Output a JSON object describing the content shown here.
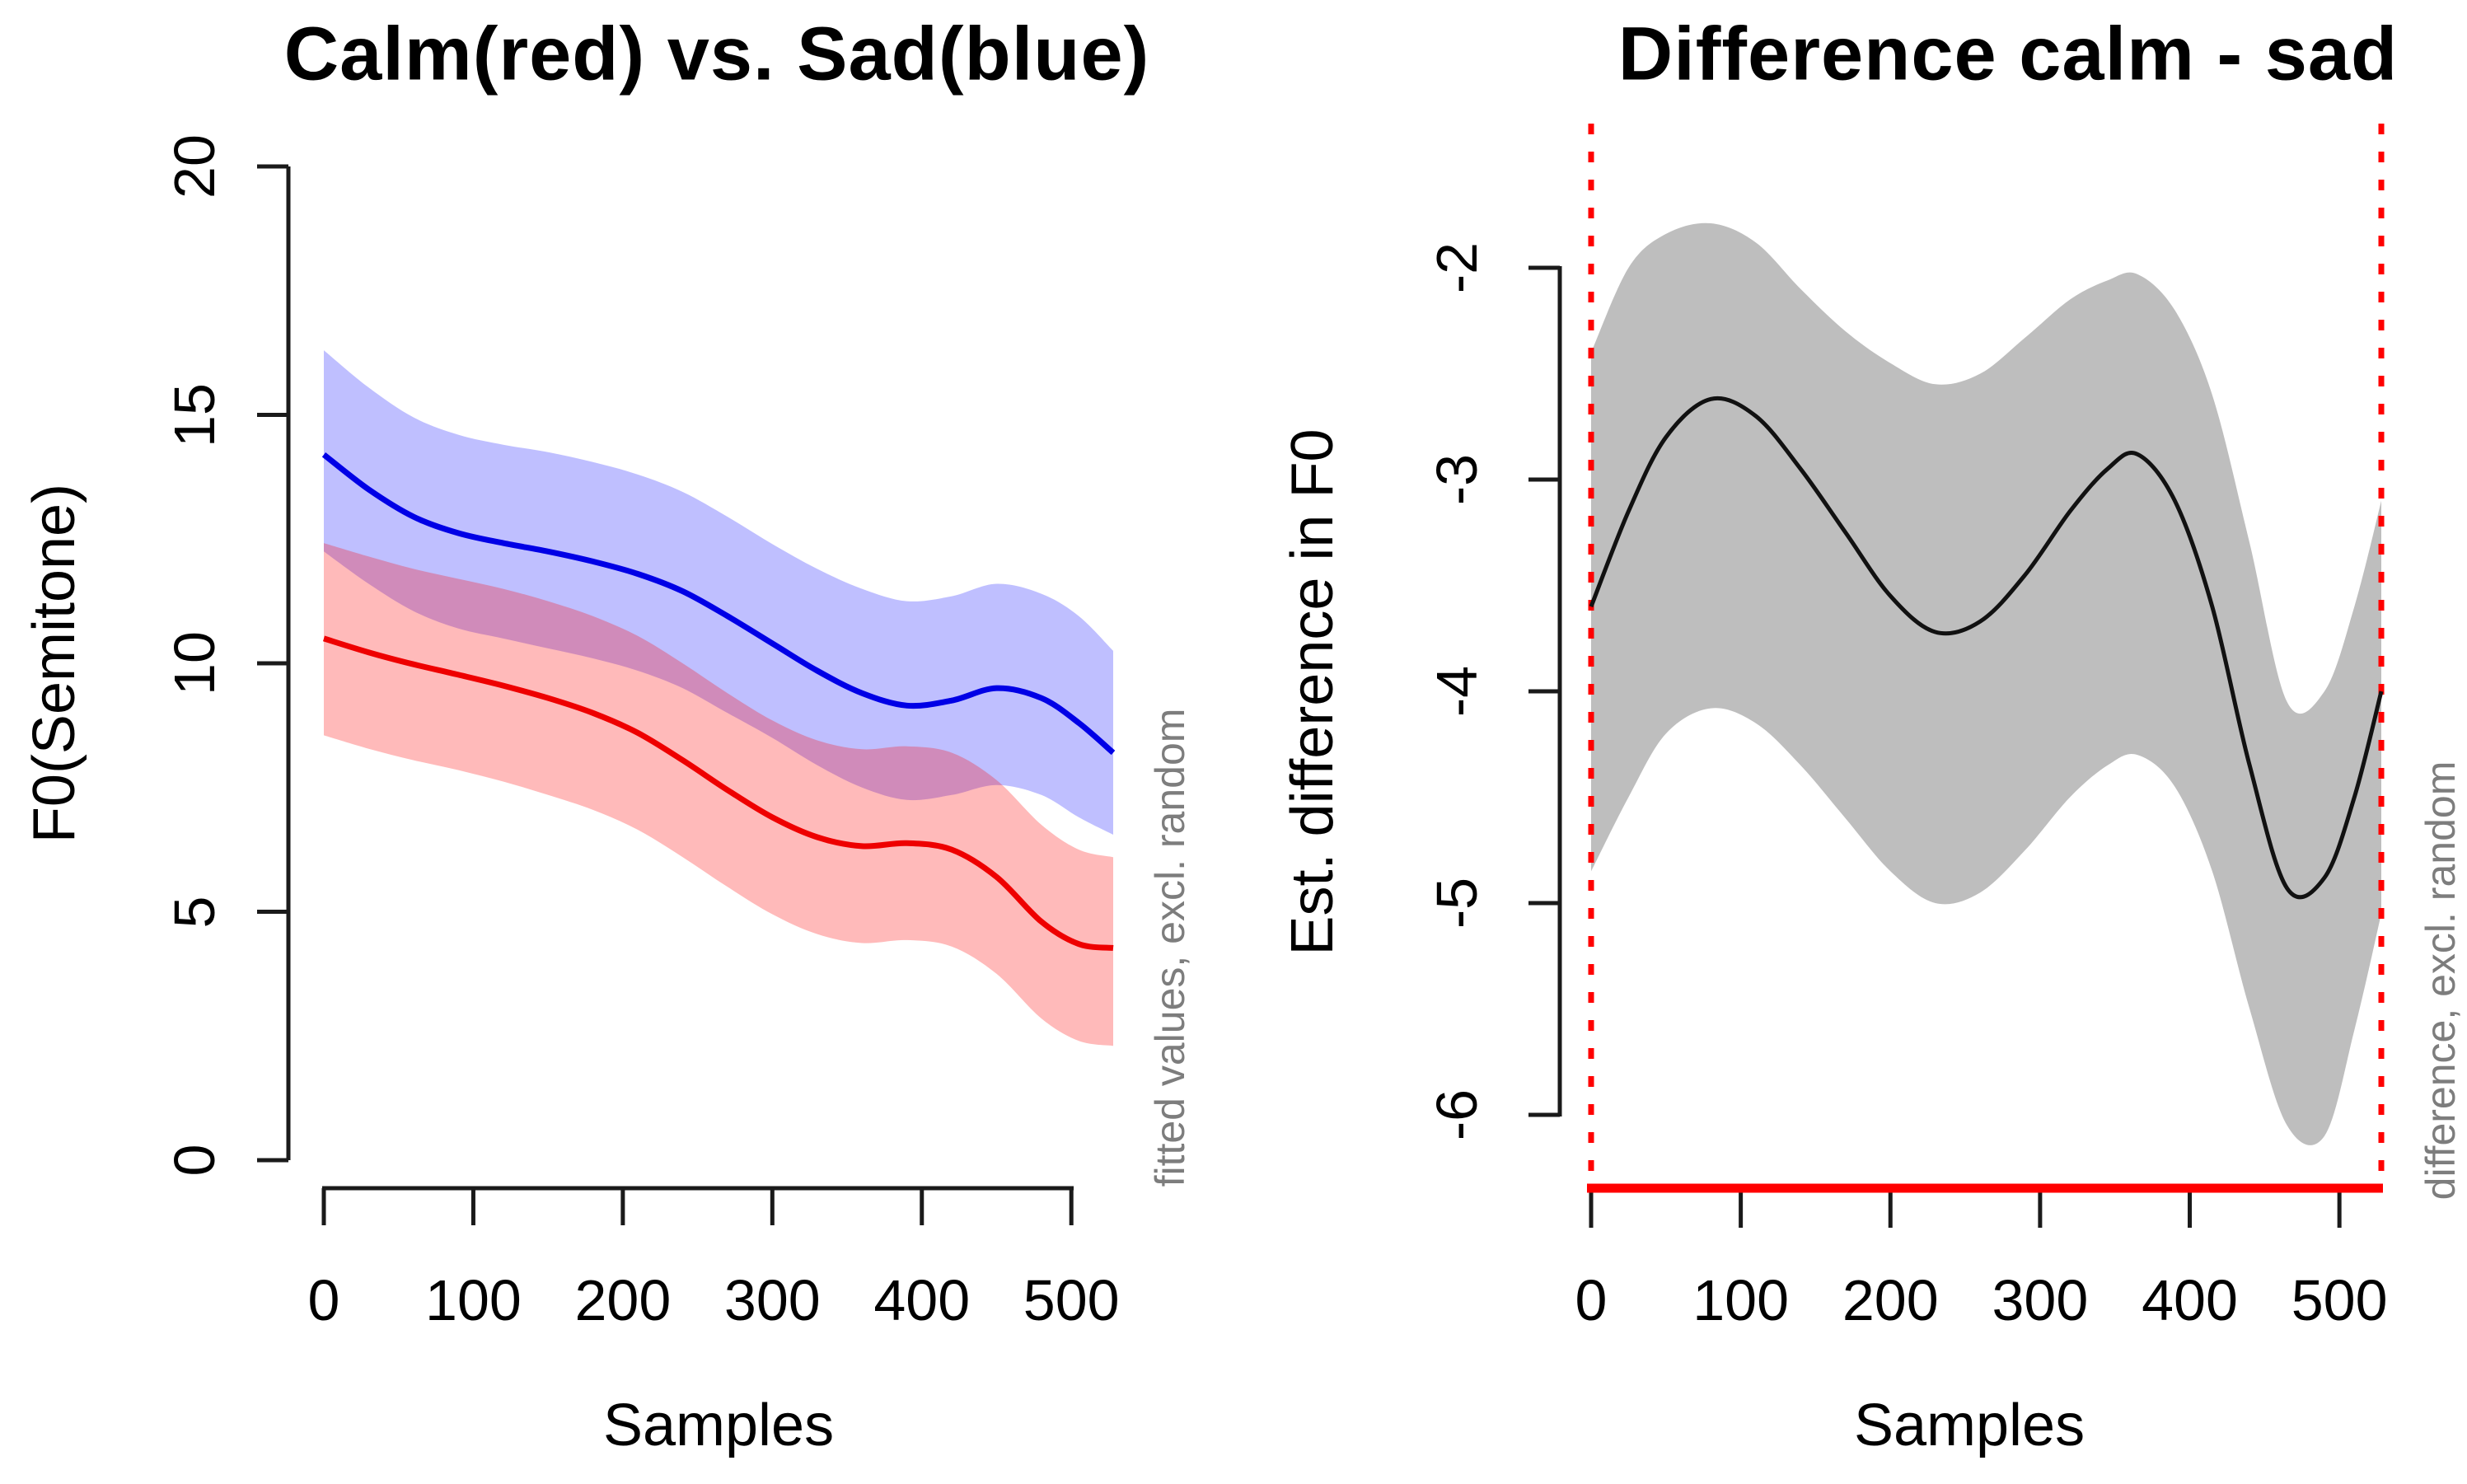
{
  "figure": {
    "background": "#ffffff",
    "text_color": "#000000",
    "annotation_color": "#7d7d7d"
  },
  "chart_data": [
    {
      "type": "line",
      "title": "Calm(red) vs. Sad(blue)",
      "xlabel": "Samples",
      "ylabel": "F0(Semitone)",
      "side_annotation": "fitted values, excl. random",
      "legend_note": "red = calm, blue = sad; shaded ribbons are confidence bands",
      "x_ticks": [
        0,
        100,
        200,
        300,
        400,
        500
      ],
      "y_ticks": [
        0,
        5,
        10,
        15,
        20
      ],
      "xlim": [
        0,
        528
      ],
      "ylim": [
        0,
        20
      ],
      "grid": false,
      "x": [
        0,
        30,
        60,
        90,
        120,
        150,
        180,
        210,
        240,
        270,
        300,
        330,
        360,
        390,
        420,
        450,
        480,
        505,
        528
      ],
      "series": [
        {
          "name": "sad-fitted",
          "color": "#0000e6",
          "values": [
            14.2,
            13.5,
            12.95,
            12.62,
            12.42,
            12.25,
            12.05,
            11.8,
            11.45,
            10.95,
            10.4,
            9.85,
            9.4,
            9.15,
            9.25,
            9.5,
            9.3,
            8.8,
            8.2
          ]
        },
        {
          "name": "calm-fitted",
          "color": "#ee0000",
          "values": [
            10.5,
            10.22,
            9.98,
            9.77,
            9.55,
            9.3,
            9.0,
            8.6,
            8.05,
            7.45,
            6.9,
            6.5,
            6.32,
            6.38,
            6.25,
            5.7,
            4.8,
            4.35,
            4.27
          ]
        }
      ],
      "bands": [
        {
          "name": "sad-confidence-band",
          "color": "rgba(0,0,255,0.25)",
          "top": [
            16.3,
            15.55,
            14.95,
            14.6,
            14.4,
            14.25,
            14.05,
            13.8,
            13.45,
            12.95,
            12.4,
            11.9,
            11.5,
            11.25,
            11.35,
            11.6,
            11.4,
            10.95,
            10.25
          ],
          "bottom": [
            12.25,
            11.6,
            11.05,
            10.7,
            10.5,
            10.3,
            10.1,
            9.85,
            9.5,
            9.0,
            8.5,
            7.95,
            7.5,
            7.25,
            7.35,
            7.55,
            7.35,
            6.9,
            6.55
          ]
        },
        {
          "name": "calm-confidence-band",
          "color": "rgba(255,0,0,0.27)",
          "top": [
            12.42,
            12.15,
            11.9,
            11.7,
            11.5,
            11.25,
            10.95,
            10.55,
            10.0,
            9.4,
            8.85,
            8.45,
            8.27,
            8.33,
            8.2,
            7.65,
            6.75,
            6.25,
            6.1
          ],
          "bottom": [
            8.55,
            8.28,
            8.05,
            7.85,
            7.62,
            7.35,
            7.05,
            6.65,
            6.1,
            5.5,
            4.95,
            4.55,
            4.37,
            4.43,
            4.3,
            3.75,
            2.85,
            2.4,
            2.3
          ]
        }
      ]
    },
    {
      "type": "line",
      "title": "Difference calm - sad",
      "xlabel": "Samples",
      "ylabel": "Est. difference in F0",
      "side_annotation": "difference, excl. random",
      "x_ticks": [
        0,
        100,
        200,
        300,
        400,
        500
      ],
      "y_ticks": [
        -2,
        -3,
        -4,
        -5,
        -6
      ],
      "xlim": [
        0,
        528
      ],
      "ylim": [
        -6.4,
        -1.3
      ],
      "grid": false,
      "x": [
        0,
        25,
        50,
        80,
        110,
        140,
        170,
        200,
        230,
        260,
        290,
        320,
        345,
        365,
        390,
        415,
        440,
        465,
        490,
        510,
        528
      ],
      "series": [
        {
          "name": "difference-estimate",
          "color": "#111111",
          "values": [
            -3.6,
            -3.15,
            -2.8,
            -2.62,
            -2.7,
            -2.95,
            -3.25,
            -3.55,
            -3.72,
            -3.67,
            -3.45,
            -3.15,
            -2.95,
            -2.88,
            -3.1,
            -3.6,
            -4.35,
            -4.93,
            -4.88,
            -4.5,
            -4.0
          ]
        }
      ],
      "bands": [
        {
          "name": "difference-confidence-band",
          "color": "#bebebe",
          "top": [
            -2.4,
            -2.0,
            -1.84,
            -1.79,
            -1.88,
            -2.1,
            -2.3,
            -2.45,
            -2.55,
            -2.5,
            -2.33,
            -2.15,
            -2.06,
            -2.03,
            -2.2,
            -2.6,
            -3.3,
            -4.05,
            -4.0,
            -3.6,
            -3.1
          ],
          "bottom": [
            -4.85,
            -4.5,
            -4.2,
            -4.08,
            -4.15,
            -4.35,
            -4.6,
            -4.85,
            -5.0,
            -4.95,
            -4.75,
            -4.5,
            -4.35,
            -4.3,
            -4.45,
            -4.85,
            -5.5,
            -6.05,
            -6.1,
            -5.6,
            -5.05
          ]
        }
      ],
      "markers": {
        "region_vlines_x": [
          0,
          528
        ],
        "region_vline_color": "#ff0000",
        "region_vline_style": "dotted",
        "baseline_color": "#ff0000",
        "baseline_note": "solid red bar along x-axis marks window of significant difference"
      }
    }
  ]
}
